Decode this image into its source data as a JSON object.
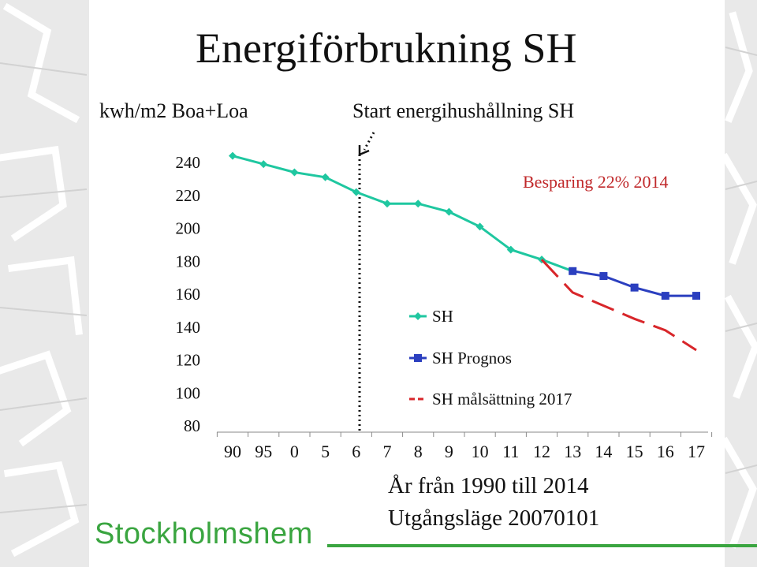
{
  "slide": {
    "title": "Energiförbrukning SH",
    "annotation": "Start energihushållning SH",
    "savings": "Besparing 22% 2014",
    "caption_line1": "År från 1990 till 2014",
    "caption_line2": "Utgångsläge 20070101",
    "logo": "Stockholmshem"
  },
  "chart_data": {
    "type": "line",
    "title": "Energiförbrukning SH",
    "ylabel": "kwh/m2 Boa+Loa",
    "xlabel": "År från 1990 till 2014",
    "categories": [
      "90",
      "95",
      "0",
      "5",
      "6",
      "7",
      "8",
      "9",
      "10",
      "11",
      "12",
      "13",
      "14",
      "15",
      "16",
      "17"
    ],
    "ylim": [
      80,
      240
    ],
    "yticks": [
      "240",
      "220",
      "200",
      "180",
      "160",
      "140",
      "120",
      "100",
      "80"
    ],
    "grid": false,
    "legend_position": "center",
    "series": [
      {
        "name": "SH",
        "color": "#1fc7a0",
        "style": "solid",
        "marker": "diamond",
        "values": [
          244,
          239,
          234,
          231,
          222,
          215,
          215,
          210,
          201,
          187,
          181,
          174,
          null,
          null,
          null,
          null
        ]
      },
      {
        "name": "SH Prognos",
        "color": "#2b3fbf",
        "style": "solid",
        "marker": "square",
        "values": [
          null,
          null,
          null,
          null,
          null,
          null,
          null,
          null,
          null,
          null,
          null,
          174,
          171,
          164,
          159,
          159
        ]
      },
      {
        "name": "SH målsättning 2017",
        "color": "#d8262a",
        "style": "dashed",
        "marker": "none",
        "values": [
          null,
          null,
          null,
          null,
          null,
          null,
          null,
          null,
          null,
          null,
          181,
          161,
          153,
          145,
          138,
          126
        ]
      }
    ],
    "annotations": [
      "Start energihushållning SH",
      "Besparing 22% 2014"
    ]
  }
}
